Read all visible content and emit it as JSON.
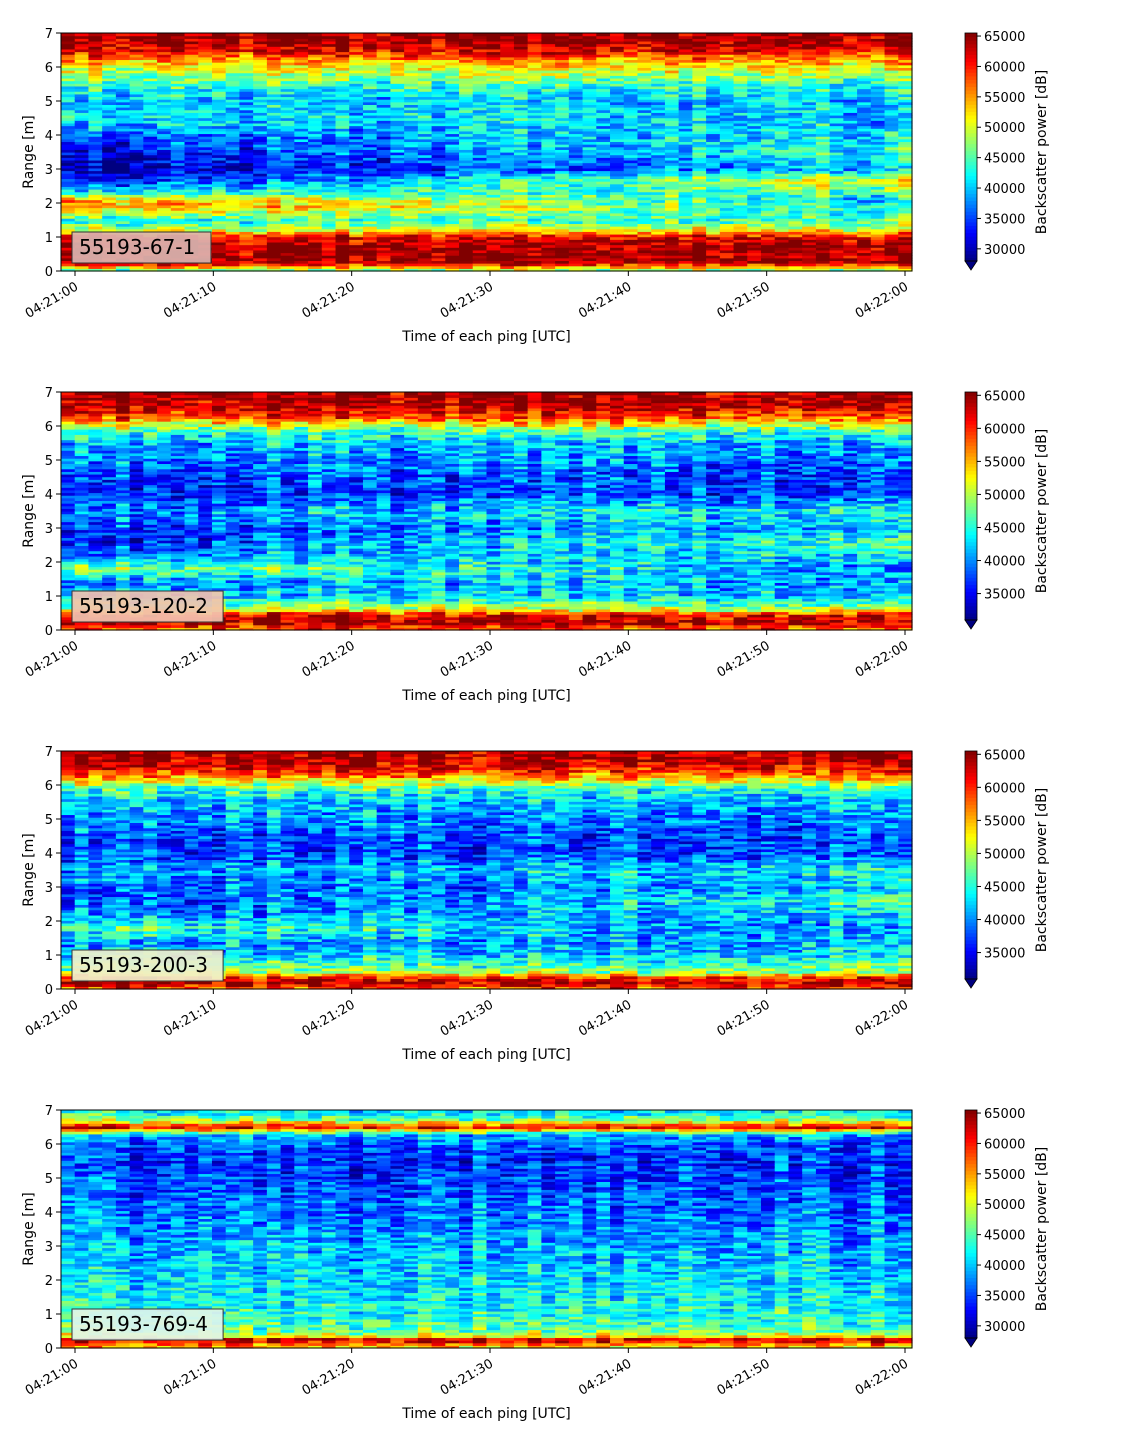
{
  "chart_data": [
    {
      "type": "heatmap",
      "label": "55193-67-1",
      "label_box_color": "#dbb4b0",
      "xlabel": "Time of each ping [UTC]",
      "ylabel": "Range [m]",
      "colorbar_label": "Backscatter power [dB]",
      "xlim": [
        "04:21:00",
        "04:22:00"
      ],
      "ylim": [
        0,
        7
      ],
      "x_ticks": [
        "04:21:00",
        "04:21:10",
        "04:21:20",
        "04:21:30",
        "04:21:40",
        "04:21:50",
        "04:22:00"
      ],
      "y_ticks": [
        0,
        1,
        2,
        3,
        4,
        5,
        6,
        7
      ],
      "color_range": [
        28000,
        65500
      ],
      "colorbar_ticks": [
        30000,
        35000,
        40000,
        45000,
        50000,
        55000,
        60000,
        65000
      ],
      "colormap": "jet",
      "profile": {
        "range": [
          0.0,
          0.25,
          0.5,
          0.8,
          1.0,
          1.2,
          1.5,
          1.9,
          2.1,
          2.3,
          2.7,
          3.0,
          3.5,
          4.0,
          4.5,
          5.0,
          5.5,
          5.9,
          6.2,
          6.5,
          6.8,
          7.0
        ],
        "start": [
          45000,
          64000,
          64500,
          64000,
          62000,
          50000,
          43000,
          56000,
          55000,
          43000,
          32000,
          30000,
          32000,
          36000,
          42000,
          40000,
          44000,
          50000,
          55000,
          62000,
          64500,
          64500
        ],
        "end": [
          45000,
          64000,
          64500,
          64000,
          62000,
          52000,
          45000,
          43000,
          40000,
          45000,
          52000,
          40000,
          44000,
          42000,
          40000,
          40000,
          44000,
          50000,
          55000,
          62000,
          64500,
          64500
        ]
      }
    },
    {
      "type": "heatmap",
      "label": "55193-120-2",
      "label_box_color": "#f2c3b0",
      "xlabel": "Time of each ping [UTC]",
      "ylabel": "Range [m]",
      "colorbar_label": "Backscatter power [dB]",
      "xlim": [
        "04:21:00",
        "04:22:00"
      ],
      "ylim": [
        0,
        7
      ],
      "x_ticks": [
        "04:21:00",
        "04:21:10",
        "04:21:20",
        "04:21:30",
        "04:21:40",
        "04:21:50",
        "04:22:00"
      ],
      "y_ticks": [
        0,
        1,
        2,
        3,
        4,
        5,
        6,
        7
      ],
      "color_range": [
        31000,
        65500
      ],
      "colorbar_ticks": [
        35000,
        40000,
        45000,
        50000,
        55000,
        60000,
        65000
      ],
      "colormap": "jet",
      "profile": {
        "range": [
          0.0,
          0.25,
          0.45,
          0.6,
          0.8,
          1.0,
          1.4,
          1.8,
          2.2,
          2.6,
          3.0,
          3.5,
          4.0,
          4.5,
          5.0,
          5.5,
          5.9,
          6.2,
          6.5,
          6.8,
          7.0
        ],
        "start": [
          58000,
          64500,
          62000,
          52000,
          46000,
          42000,
          40000,
          50000,
          40000,
          36000,
          37000,
          40000,
          36000,
          38000,
          40000,
          42000,
          47000,
          57000,
          63000,
          64500,
          64500
        ],
        "end": [
          58000,
          64500,
          62000,
          52000,
          47000,
          43000,
          42000,
          40000,
          44000,
          48000,
          42000,
          46000,
          38000,
          38000,
          40000,
          42000,
          47000,
          57000,
          63000,
          64500,
          64500
        ]
      }
    },
    {
      "type": "heatmap",
      "label": "55193-200-3",
      "label_box_color": "#f0efcc",
      "xlabel": "Time of each ping [UTC]",
      "ylabel": "Range [m]",
      "colorbar_label": "Backscatter power [dB]",
      "xlim": [
        "04:21:00",
        "04:22:00"
      ],
      "ylim": [
        0,
        7
      ],
      "x_ticks": [
        "04:21:00",
        "04:21:10",
        "04:21:20",
        "04:21:30",
        "04:21:40",
        "04:21:50",
        "04:22:00"
      ],
      "y_ticks": [
        0,
        1,
        2,
        3,
        4,
        5,
        6,
        7
      ],
      "color_range": [
        31000,
        65500
      ],
      "colorbar_ticks": [
        35000,
        40000,
        45000,
        50000,
        55000,
        60000,
        65000
      ],
      "colormap": "jet",
      "profile": {
        "range": [
          0.0,
          0.2,
          0.35,
          0.5,
          0.8,
          1.0,
          1.4,
          1.8,
          2.2,
          2.6,
          3.0,
          3.5,
          4.0,
          4.5,
          5.0,
          5.5,
          5.9,
          6.2,
          6.5,
          6.8,
          7.0
        ],
        "start": [
          58000,
          64500,
          60000,
          50000,
          45000,
          42000,
          40000,
          47000,
          40000,
          37000,
          38000,
          40000,
          37000,
          38000,
          40000,
          42000,
          46000,
          55000,
          62000,
          64500,
          64500
        ],
        "end": [
          58000,
          64500,
          60000,
          50000,
          46000,
          43000,
          42000,
          40000,
          42000,
          46000,
          42000,
          45000,
          38000,
          38000,
          40000,
          42000,
          46000,
          55000,
          62000,
          64500,
          64500
        ]
      }
    },
    {
      "type": "heatmap",
      "label": "55193-769-4",
      "label_box_color": "#dff4ea",
      "xlabel": "Time of each ping [UTC]",
      "ylabel": "Range [m]",
      "colorbar_label": "Backscatter power [dB]",
      "xlim": [
        "04:21:00",
        "04:22:00"
      ],
      "ylim": [
        0,
        7
      ],
      "x_ticks": [
        "04:21:00",
        "04:21:10",
        "04:21:20",
        "04:21:30",
        "04:21:40",
        "04:21:50",
        "04:22:00"
      ],
      "y_ticks": [
        0,
        1,
        2,
        3,
        4,
        5,
        6,
        7
      ],
      "color_range": [
        28000,
        65500
      ],
      "colorbar_ticks": [
        30000,
        35000,
        40000,
        45000,
        50000,
        55000,
        60000,
        65000
      ],
      "colormap": "jet",
      "profile": {
        "range": [
          0.0,
          0.15,
          0.25,
          0.35,
          0.5,
          0.8,
          1.0,
          1.5,
          2.0,
          2.5,
          3.0,
          3.5,
          4.0,
          4.5,
          5.0,
          5.5,
          6.0,
          6.3,
          6.5,
          6.7,
          6.9,
          7.0
        ],
        "start": [
          52000,
          58000,
          64500,
          52000,
          46000,
          44000,
          43000,
          42000,
          41000,
          40000,
          39000,
          38000,
          37000,
          36000,
          35000,
          34000,
          36000,
          40000,
          62000,
          48000,
          42000,
          42000
        ],
        "end": [
          52000,
          58000,
          64500,
          52000,
          46000,
          44000,
          43000,
          42000,
          41000,
          40000,
          39000,
          38000,
          37000,
          36000,
          35000,
          34000,
          36000,
          40000,
          62000,
          48000,
          42000,
          42000
        ]
      }
    }
  ]
}
